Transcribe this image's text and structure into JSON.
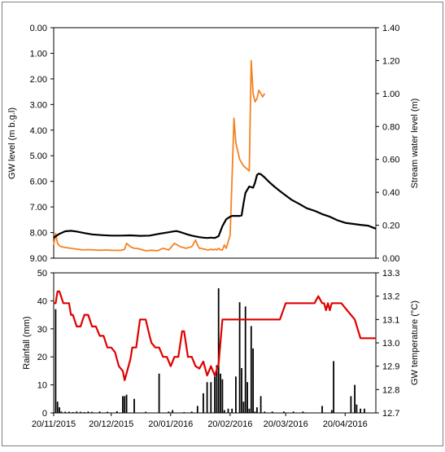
{
  "chart_data": [
    {
      "panel": "top",
      "type": "line",
      "y_left": {
        "label": "GW level (m b.g.l)",
        "range": [
          0,
          9
        ],
        "inverted": true,
        "ticks": [
          "0.00",
          "1.00",
          "2.00",
          "3.00",
          "4.00",
          "5.00",
          "6.00",
          "7.00",
          "8.00",
          "9.00"
        ]
      },
      "y_right": {
        "label": "Stream water level (m)",
        "range": [
          0,
          1.4
        ],
        "ticks": [
          "0.00",
          "0.20",
          "0.40",
          "0.60",
          "0.80",
          "1.00",
          "1.20",
          "1.40"
        ]
      },
      "x_range_days": [
        0,
        168
      ],
      "series": [
        {
          "axis": "left",
          "color": "#000000",
          "x": [
            0,
            3,
            6,
            9,
            12,
            16,
            20,
            25,
            30,
            35,
            40,
            45,
            50,
            55,
            60,
            62,
            64,
            66,
            68,
            70,
            72,
            74,
            76,
            78,
            80,
            82,
            84,
            86,
            88,
            90,
            92,
            93,
            94,
            95,
            96,
            97,
            98,
            99,
            100,
            102,
            104,
            105,
            106,
            107,
            108,
            110,
            112,
            115,
            118,
            121,
            124,
            128,
            132,
            136,
            140,
            144,
            148,
            152,
            156,
            160,
            164,
            168
          ],
          "y": [
            8.2,
            8.05,
            7.95,
            7.93,
            7.96,
            8.02,
            8.07,
            8.1,
            8.12,
            8.12,
            8.11,
            8.13,
            8.12,
            8.05,
            7.99,
            7.96,
            7.94,
            7.98,
            8.03,
            8.08,
            8.12,
            8.15,
            8.18,
            8.2,
            8.21,
            8.2,
            8.21,
            8.14,
            7.75,
            7.48,
            7.38,
            7.35,
            7.35,
            7.35,
            7.35,
            7.35,
            7.33,
            6.85,
            6.45,
            6.2,
            6.25,
            6.05,
            5.75,
            5.7,
            5.72,
            5.85,
            6.0,
            6.2,
            6.38,
            6.55,
            6.72,
            6.88,
            7.05,
            7.15,
            7.28,
            7.38,
            7.52,
            7.62,
            7.66,
            7.7,
            7.73,
            7.85
          ]
        },
        {
          "axis": "right",
          "color": "#f58220",
          "x": [
            0,
            1,
            2,
            3,
            4,
            6,
            9,
            12,
            15,
            18,
            21,
            24,
            27,
            30,
            33,
            35,
            36,
            37,
            38,
            40,
            41,
            42,
            43,
            45,
            48,
            51,
            54,
            57,
            60,
            63,
            66,
            69,
            72,
            74,
            75,
            76,
            77,
            78,
            79,
            80,
            81,
            82,
            83,
            84,
            85,
            86,
            87,
            88,
            89,
            90,
            91,
            92,
            93,
            94,
            95,
            97,
            98,
            99,
            100,
            101,
            102,
            103,
            104,
            105,
            106,
            107,
            108,
            109,
            110
          ],
          "y": [
            0.08,
            0.15,
            0.09,
            0.075,
            0.07,
            0.065,
            0.06,
            0.055,
            0.05,
            0.052,
            0.05,
            0.048,
            0.05,
            0.048,
            0.047,
            0.048,
            0.05,
            0.055,
            0.09,
            0.07,
            0.065,
            0.06,
            0.06,
            0.055,
            0.045,
            0.048,
            0.045,
            0.06,
            0.05,
            0.09,
            0.07,
            0.06,
            0.07,
            0.11,
            0.08,
            0.06,
            0.06,
            0.055,
            0.055,
            0.05,
            0.05,
            0.055,
            0.05,
            0.055,
            0.05,
            0.06,
            0.05,
            0.05,
            0.08,
            0.06,
            0.1,
            0.14,
            0.48,
            0.85,
            0.7,
            0.6,
            0.58,
            0.56,
            0.55,
            0.54,
            0.53,
            1.2,
            1.0,
            0.95,
            0.97,
            1.02,
            1.0,
            0.98,
            1.0
          ]
        }
      ]
    },
    {
      "panel": "bottom",
      "type": "bar",
      "y_left": {
        "label": "Rainfall (mm)",
        "range": [
          0,
          50
        ],
        "ticks": [
          "0",
          "10",
          "20",
          "30",
          "40",
          "50"
        ]
      },
      "y_right": {
        "label": "GW temperature (°C)",
        "range": [
          12.7,
          13.3
        ],
        "ticks": [
          "12.7",
          "12.8",
          "12.9",
          "13.0",
          "13.1",
          "13.2",
          "13.3"
        ]
      },
      "x_tick_labels": [
        "20/11/2015",
        "20/12/2015",
        "20/01/2016",
        "20/02/2016",
        "20/03/2016",
        "20/04/2016"
      ],
      "x_tick_days": [
        0,
        30,
        61,
        92,
        121,
        152
      ],
      "x_range_days": [
        0,
        168
      ],
      "rain": {
        "color": "#000000",
        "day": [
          1,
          2,
          3,
          4,
          6,
          8,
          10,
          12,
          14,
          16,
          18,
          20,
          24,
          28,
          33,
          36,
          37,
          38,
          42,
          48,
          55,
          60,
          62,
          68,
          72,
          75,
          78,
          80,
          82,
          84,
          85,
          86,
          87,
          88,
          89,
          91,
          93,
          95,
          97,
          98,
          99,
          100,
          101,
          102,
          103,
          104,
          105,
          106,
          108,
          110,
          114,
          120,
          125,
          130,
          140,
          145,
          146,
          155,
          157,
          158,
          160,
          162
        ],
        "mm": [
          37,
          4,
          2,
          0.5,
          0.4,
          0.4,
          0.3,
          0.5,
          0.4,
          0.3,
          0.5,
          0.4,
          0.5,
          0.4,
          0.6,
          6,
          6,
          6.5,
          5,
          0.4,
          14,
          0.5,
          1,
          0.3,
          0.5,
          2.5,
          7,
          11,
          11,
          13,
          17,
          44.5,
          14,
          12,
          1,
          1.5,
          1.5,
          13,
          39.5,
          16,
          4,
          38,
          11,
          1.5,
          31,
          23,
          0.5,
          2,
          6,
          0.5,
          0.5,
          0.5,
          0.5,
          0.5,
          2.5,
          1,
          18.5,
          6,
          10,
          3,
          1.5,
          1.5
        ]
      },
      "temperature": {
        "color": "#e00000",
        "x": [
          0,
          1,
          2,
          3,
          5,
          8,
          9,
          10,
          12,
          14,
          16,
          18,
          20,
          22,
          24,
          26,
          28,
          30,
          32,
          34,
          36,
          37,
          38,
          40,
          41,
          43,
          45,
          46,
          48,
          50,
          51,
          53,
          55,
          57,
          59,
          61,
          63,
          65,
          67,
          68,
          70,
          72,
          74,
          76,
          78,
          80,
          82,
          84,
          86,
          88,
          90,
          92,
          98,
          102,
          106,
          110,
          113,
          118,
          121,
          124,
          128,
          133,
          136,
          138,
          140,
          141,
          142,
          143,
          144,
          145,
          146,
          148,
          150,
          153,
          157,
          160,
          162,
          164,
          168
        ],
        "y": [
          13.17,
          13.17,
          13.22,
          13.22,
          13.17,
          13.17,
          13.12,
          13.12,
          13.07,
          13.07,
          13.12,
          13.12,
          13.07,
          13.07,
          13.03,
          13.03,
          12.98,
          12.98,
          12.96,
          12.9,
          12.88,
          12.84,
          12.87,
          12.93,
          12.98,
          12.98,
          13.1,
          13.1,
          13.1,
          13.03,
          13.0,
          12.98,
          12.98,
          12.94,
          12.94,
          12.9,
          12.94,
          12.94,
          13.05,
          13.05,
          12.94,
          12.94,
          12.9,
          12.89,
          12.92,
          12.86,
          12.9,
          12.86,
          12.91,
          13.1,
          13.1,
          13.1,
          13.1,
          13.1,
          13.1,
          13.1,
          13.1,
          13.1,
          13.17,
          13.17,
          13.17,
          13.17,
          13.17,
          13.2,
          13.17,
          13.17,
          13.14,
          13.17,
          13.14,
          13.17,
          13.17,
          13.17,
          13.17,
          13.14,
          13.1,
          13.02,
          13.02,
          13.02,
          13.02
        ]
      }
    }
  ]
}
